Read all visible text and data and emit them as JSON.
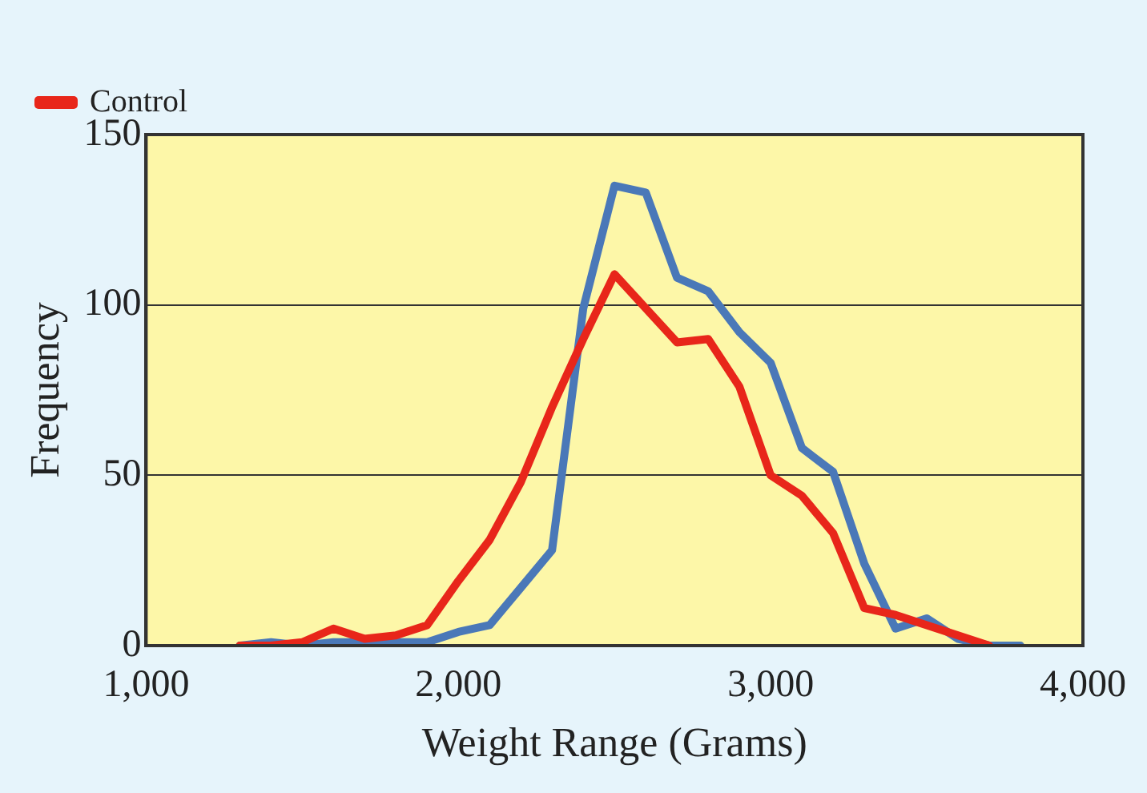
{
  "chart_data": {
    "type": "line",
    "xlabel": "Weight Range (Grams)",
    "ylabel": "Frequency",
    "x": [
      1300,
      1400,
      1500,
      1600,
      1700,
      1800,
      1900,
      2000,
      2100,
      2200,
      2300,
      2400,
      2500,
      2600,
      2700,
      2800,
      2900,
      3000,
      3100,
      3200,
      3300,
      3400,
      3500,
      3600,
      3700,
      3800
    ],
    "series": [
      {
        "name": "Control",
        "color": "#e8261a",
        "values": [
          0,
          0,
          1,
          5,
          2,
          3,
          6,
          19,
          31,
          48,
          70,
          90,
          109,
          99,
          89,
          90,
          76,
          50,
          44,
          33,
          11,
          9,
          6,
          3,
          0,
          null
        ]
      },
      {
        "color": "#4a78b8",
        "values": [
          0,
          1,
          0,
          1,
          1,
          1,
          1,
          4,
          6,
          17,
          28,
          99,
          135,
          133,
          108,
          104,
          92,
          83,
          58,
          51,
          24,
          5,
          8,
          2,
          0,
          0
        ]
      }
    ],
    "xlim": [
      1000,
      4000
    ],
    "xticks": [
      {
        "value": 1000,
        "label": "1,000"
      },
      {
        "value": 2000,
        "label": "2,000"
      },
      {
        "value": 3000,
        "label": "3,000"
      },
      {
        "value": 4000,
        "label": "4,000"
      }
    ],
    "ylim": [
      0,
      150
    ],
    "yticks": [
      0,
      50,
      100,
      150
    ],
    "grid": "y",
    "legend": "top left",
    "marker": "none",
    "line_style": "solid"
  }
}
